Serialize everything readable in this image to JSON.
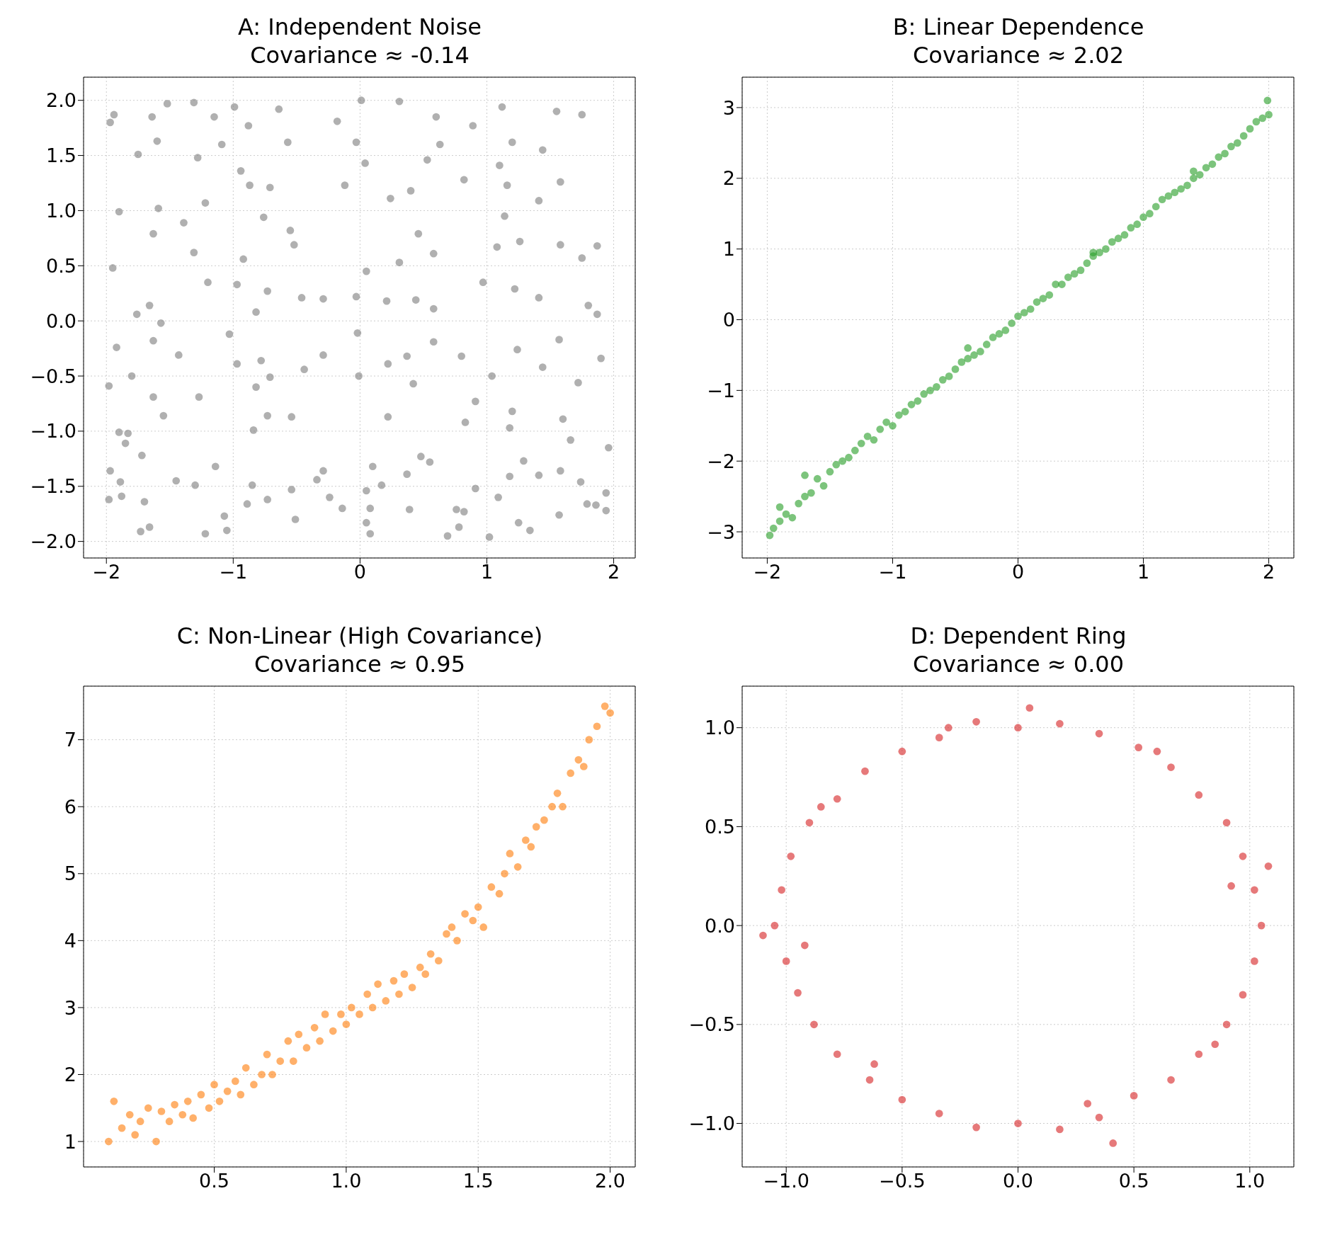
{
  "chart_data": [
    {
      "type": "scatter",
      "title": "A: Independent Noise",
      "subtitle": "Covariance ≈ -0.14",
      "color": "#808080",
      "marker": "circle",
      "grid": true,
      "x": [
        -1.97,
        -1.94,
        -1.64,
        -1.52,
        -1.31,
        -1.15,
        -0.99,
        -0.88,
        -0.64,
        -0.18,
        0.01,
        0.31,
        0.6,
        0.89,
        1.12,
        1.55,
        1.75,
        -1.75,
        -1.6,
        -1.28,
        -1.09,
        -0.94,
        -0.57,
        -0.03,
        0.04,
        0.53,
        0.63,
        1.1,
        1.2,
        1.44,
        -1.9,
        -1.59,
        -1.22,
        -0.87,
        -0.71,
        -0.12,
        0.24,
        0.4,
        0.82,
        1.16,
        1.41,
        1.58,
        1.14,
        -1.95,
        -1.63,
        -1.39,
        -1.31,
        -0.92,
        -0.76,
        -0.55,
        -0.52,
        0.05,
        0.31,
        0.46,
        0.58,
        1.08,
        1.26,
        1.58,
        1.87,
        1.75,
        -1.76,
        -1.66,
        -1.2,
        -0.97,
        -0.73,
        -0.46,
        -0.29,
        -0.03,
        0.21,
        0.44,
        0.58,
        0.97,
        1.22,
        1.41,
        1.8,
        1.87,
        -1.57,
        -0.82,
        -1.92,
        -1.63,
        -1.43,
        -1.03,
        -0.97,
        -0.78,
        -0.71,
        -0.44,
        -0.29,
        -0.02,
        -0.01,
        0.22,
        0.37,
        0.42,
        0.58,
        0.8,
        1.04,
        1.24,
        1.44,
        1.57,
        1.9,
        1.72,
        -1.98,
        -1.8,
        -1.63,
        -1.55,
        -1.27,
        -0.82,
        -0.73,
        -0.54,
        -0.84,
        0.22,
        0.91,
        0.83,
        1.18,
        1.2,
        1.6,
        -1.9,
        -1.83,
        -1.85,
        1.66,
        1.96,
        -1.97,
        -1.72,
        -1.89,
        -1.45,
        -1.3,
        -1.14,
        -0.85,
        -0.54,
        -0.29,
        -0.34,
        -0.24,
        0.1,
        0.17,
        0.05,
        0.37,
        0.48,
        0.55,
        0.91,
        1.18,
        1.29,
        1.41,
        1.58,
        1.74,
        1.94,
        -1.98,
        -1.88,
        -1.7,
        -1.73,
        -1.66,
        -1.22,
        -1.07,
        -1.05,
        -0.89,
        -0.73,
        -0.51,
        -0.14,
        0.08,
        0.05,
        0.08,
        0.39,
        0.69,
        0.76,
        0.82,
        0.78,
        1.02,
        1.09,
        1.25,
        1.34,
        1.57,
        1.79,
        1.86,
        1.94
      ],
      "values": [
        1.8,
        1.87,
        1.85,
        1.97,
        1.98,
        1.85,
        1.94,
        1.77,
        1.92,
        1.81,
        2.0,
        1.99,
        1.85,
        1.77,
        1.94,
        1.9,
        1.87,
        1.51,
        1.63,
        1.48,
        1.6,
        1.36,
        1.62,
        1.62,
        1.43,
        1.46,
        1.6,
        1.41,
        1.62,
        1.55,
        0.99,
        1.02,
        1.07,
        1.23,
        1.21,
        1.23,
        1.11,
        1.18,
        1.28,
        1.23,
        1.09,
        1.26,
        0.95,
        0.48,
        0.79,
        0.89,
        0.62,
        0.56,
        0.94,
        0.82,
        0.69,
        0.45,
        0.53,
        0.79,
        0.61,
        0.67,
        0.72,
        0.69,
        0.68,
        0.57,
        0.06,
        0.14,
        0.35,
        0.33,
        0.27,
        0.21,
        0.2,
        0.22,
        0.18,
        0.19,
        0.11,
        0.35,
        0.29,
        0.21,
        0.14,
        0.06,
        -0.02,
        0.08,
        -0.24,
        -0.18,
        -0.31,
        -0.12,
        -0.39,
        -0.36,
        -0.51,
        -0.44,
        -0.31,
        -0.11,
        -0.5,
        -0.39,
        -0.32,
        -0.57,
        -0.19,
        -0.32,
        -0.5,
        -0.26,
        -0.42,
        -0.17,
        -0.34,
        -0.56,
        -0.59,
        -0.5,
        -0.69,
        -0.86,
        -0.69,
        -0.6,
        -0.86,
        -0.87,
        -0.99,
        -0.87,
        -0.73,
        -0.92,
        -0.97,
        -0.82,
        -0.89,
        -1.01,
        -1.02,
        -1.11,
        -1.08,
        -1.15,
        -1.36,
        -1.22,
        -1.46,
        -1.45,
        -1.49,
        -1.32,
        -1.49,
        -1.53,
        -1.36,
        -1.44,
        -1.6,
        -1.32,
        -1.49,
        -1.54,
        -1.39,
        -1.23,
        -1.28,
        -1.52,
        -1.41,
        -1.27,
        -1.4,
        -1.36,
        -1.46,
        -1.56,
        -1.62,
        -1.59,
        -1.64,
        -1.91,
        -1.87,
        -1.93,
        -1.77,
        -1.9,
        -1.66,
        -1.62,
        -1.8,
        -1.7,
        -1.7,
        -1.83,
        -1.93,
        -1.71,
        -1.95,
        -1.71,
        -1.73,
        -1.87,
        -1.96,
        -1.6,
        -1.83,
        -1.9,
        -1.76,
        -1.66,
        -1.67,
        -1.72
      ],
      "xlim": [
        -2.18,
        2.17
      ],
      "ylim": [
        -2.15,
        2.21
      ],
      "xticks": [
        {
          "value": -2,
          "label": "−2"
        },
        {
          "value": -1,
          "label": "−1"
        },
        0,
        1,
        2
      ],
      "yticks": [
        {
          "value": -2,
          "label": "−2.0"
        },
        {
          "value": -1.5,
          "label": "−1.5"
        },
        {
          "value": -1,
          "label": "−1.0"
        },
        {
          "value": -0.5,
          "label": "−0.5"
        },
        {
          "value": 0,
          "label": "0.0"
        },
        0.5,
        {
          "value": 1,
          "label": "1.0"
        },
        1.5,
        {
          "value": 2,
          "label": "2.0"
        }
      ]
    },
    {
      "type": "scatter",
      "title": "B: Linear Dependence",
      "subtitle": "Covariance ≈ 2.02",
      "color": "#2ca02c",
      "marker": "circle",
      "grid": true,
      "x": [
        -1.98,
        -1.95,
        -1.9,
        -1.85,
        -1.8,
        -1.75,
        -1.7,
        -1.65,
        -1.6,
        -1.55,
        -1.5,
        -1.45,
        -1.4,
        -1.35,
        -1.3,
        -1.25,
        -1.2,
        -1.15,
        -1.1,
        -1.05,
        -1.0,
        -0.95,
        -0.9,
        -0.85,
        -0.8,
        -0.75,
        -0.7,
        -0.65,
        -0.6,
        -0.55,
        -0.5,
        -0.45,
        -0.4,
        -0.35,
        -0.3,
        -0.25,
        -0.2,
        -0.15,
        -0.1,
        -0.05,
        0.0,
        0.05,
        0.1,
        0.15,
        0.2,
        0.25,
        0.3,
        0.35,
        0.4,
        0.45,
        0.5,
        0.55,
        0.6,
        0.65,
        0.7,
        0.75,
        0.8,
        0.85,
        0.9,
        0.95,
        1.0,
        1.05,
        1.1,
        1.15,
        1.2,
        1.25,
        1.3,
        1.35,
        1.4,
        1.45,
        1.5,
        1.55,
        1.6,
        1.65,
        1.7,
        1.75,
        1.8,
        1.85,
        1.9,
        1.95,
        2.0,
        1.99,
        -1.9,
        -1.7,
        -0.4,
        0.6,
        1.4
      ],
      "values": [
        -3.05,
        -2.95,
        -2.85,
        -2.75,
        -2.8,
        -2.6,
        -2.5,
        -2.45,
        -2.25,
        -2.35,
        -2.15,
        -2.05,
        -2.0,
        -1.95,
        -1.85,
        -1.75,
        -1.65,
        -1.7,
        -1.55,
        -1.45,
        -1.5,
        -1.35,
        -1.3,
        -1.2,
        -1.15,
        -1.05,
        -1.0,
        -0.95,
        -0.85,
        -0.8,
        -0.7,
        -0.6,
        -0.55,
        -0.5,
        -0.45,
        -0.35,
        -0.25,
        -0.2,
        -0.15,
        -0.05,
        0.05,
        0.1,
        0.15,
        0.25,
        0.3,
        0.35,
        0.5,
        0.5,
        0.6,
        0.65,
        0.7,
        0.8,
        0.9,
        0.95,
        1.0,
        1.1,
        1.15,
        1.2,
        1.3,
        1.35,
        1.45,
        1.5,
        1.6,
        1.7,
        1.75,
        1.8,
        1.85,
        1.9,
        2.0,
        2.05,
        2.15,
        2.2,
        2.3,
        2.35,
        2.45,
        2.5,
        2.6,
        2.7,
        2.8,
        2.85,
        2.9,
        3.1,
        -2.65,
        -2.2,
        -0.4,
        0.95,
        2.1
      ],
      "xlim": [
        -2.2,
        2.2
      ],
      "ylim": [
        -3.37,
        3.43
      ],
      "xticks": [
        {
          "value": -2,
          "label": "−2"
        },
        {
          "value": -1,
          "label": "−1"
        },
        0,
        1,
        2
      ],
      "yticks": [
        {
          "value": -3,
          "label": "−3"
        },
        {
          "value": -2,
          "label": "−2"
        },
        {
          "value": -1,
          "label": "−1"
        },
        0,
        1,
        2,
        3
      ]
    },
    {
      "type": "scatter",
      "title": "C: Non-Linear (High Covariance)",
      "subtitle": "Covariance ≈ 0.95",
      "color": "#ff7f0e",
      "marker": "circle",
      "grid": true,
      "x": [
        0.1,
        0.12,
        0.15,
        0.18,
        0.2,
        0.22,
        0.25,
        0.28,
        0.3,
        0.33,
        0.35,
        0.38,
        0.4,
        0.42,
        0.45,
        0.48,
        0.5,
        0.52,
        0.55,
        0.58,
        0.6,
        0.62,
        0.65,
        0.68,
        0.7,
        0.72,
        0.75,
        0.78,
        0.8,
        0.82,
        0.85,
        0.88,
        0.9,
        0.92,
        0.95,
        0.98,
        1.0,
        1.02,
        1.05,
        1.08,
        1.1,
        1.12,
        1.15,
        1.18,
        1.2,
        1.22,
        1.25,
        1.28,
        1.3,
        1.32,
        1.35,
        1.38,
        1.4,
        1.42,
        1.45,
        1.48,
        1.5,
        1.52,
        1.55,
        1.58,
        1.6,
        1.62,
        1.65,
        1.68,
        1.7,
        1.72,
        1.75,
        1.78,
        1.8,
        1.82,
        1.85,
        1.88,
        1.9,
        1.92,
        1.95,
        1.98,
        2.0
      ],
      "values": [
        1.0,
        1.6,
        1.2,
        1.4,
        1.1,
        1.3,
        1.5,
        1.0,
        1.45,
        1.3,
        1.55,
        1.4,
        1.6,
        1.35,
        1.7,
        1.5,
        1.85,
        1.6,
        1.75,
        1.9,
        1.7,
        2.1,
        1.85,
        2.0,
        2.3,
        2.0,
        2.2,
        2.5,
        2.2,
        2.6,
        2.4,
        2.7,
        2.5,
        2.9,
        2.65,
        2.9,
        2.75,
        3.0,
        2.9,
        3.2,
        3.0,
        3.35,
        3.1,
        3.4,
        3.2,
        3.5,
        3.3,
        3.6,
        3.5,
        3.8,
        3.7,
        4.1,
        4.2,
        4.0,
        4.4,
        4.3,
        4.5,
        4.2,
        4.8,
        4.7,
        5.0,
        5.3,
        5.1,
        5.5,
        5.4,
        5.7,
        5.8,
        6.0,
        6.2,
        6.0,
        6.5,
        6.7,
        6.6,
        7.0,
        7.2,
        7.5,
        7.4
      ],
      "xlim": [
        0.005,
        2.095
      ],
      "ylim": [
        0.62,
        7.8
      ],
      "xticks": [
        0.5,
        {
          "value": 1,
          "label": "1.0"
        },
        1.5,
        {
          "value": 2,
          "label": "2.0"
        }
      ],
      "yticks": [
        1,
        2,
        3,
        4,
        5,
        6,
        7
      ]
    },
    {
      "type": "scatter",
      "title": "D: Dependent Ring",
      "subtitle": "Covariance ≈ 0.00",
      "color": "#d62728",
      "marker": "circle",
      "grid": true,
      "x": [
        1.05,
        1.02,
        0.97,
        0.9,
        0.78,
        0.66,
        0.52,
        0.35,
        0.18,
        0.0,
        -0.18,
        -0.34,
        -0.5,
        -0.66,
        -0.78,
        -0.9,
        -0.98,
        -1.02,
        -1.05,
        -1.0,
        -0.95,
        -0.88,
        -0.78,
        -0.64,
        -0.5,
        -0.34,
        -0.18,
        0.0,
        0.18,
        0.35,
        0.5,
        0.66,
        0.78,
        0.9,
        0.97,
        1.02,
        1.08,
        -1.1,
        0.05,
        0.41,
        -0.85,
        0.92,
        -0.92,
        0.6,
        -0.62,
        0.85,
        -0.3,
        0.3
      ],
      "values": [
        0.0,
        0.18,
        0.35,
        0.52,
        0.66,
        0.8,
        0.9,
        0.97,
        1.02,
        1.0,
        1.03,
        0.95,
        0.88,
        0.78,
        0.64,
        0.52,
        0.35,
        0.18,
        0.0,
        -0.18,
        -0.34,
        -0.5,
        -0.65,
        -0.78,
        -0.88,
        -0.95,
        -1.02,
        -1.0,
        -1.03,
        -0.97,
        -0.86,
        -0.78,
        -0.65,
        -0.5,
        -0.35,
        -0.18,
        0.3,
        -0.05,
        1.1,
        -1.1,
        0.6,
        0.2,
        -0.1,
        0.88,
        -0.7,
        -0.6,
        1.0,
        -0.9
      ],
      "xlim": [
        -1.19,
        1.19
      ],
      "ylim": [
        -1.22,
        1.21
      ],
      "xticks": [
        {
          "value": -1,
          "label": "−1.0"
        },
        {
          "value": -0.5,
          "label": "−0.5"
        },
        {
          "value": 0,
          "label": "0.0"
        },
        0.5,
        {
          "value": 1,
          "label": "1.0"
        }
      ],
      "yticks": [
        {
          "value": -1,
          "label": "−1.0"
        },
        {
          "value": -0.5,
          "label": "−0.5"
        },
        {
          "value": 0,
          "label": "0.0"
        },
        0.5,
        {
          "value": 1,
          "label": "1.0"
        }
      ]
    }
  ]
}
